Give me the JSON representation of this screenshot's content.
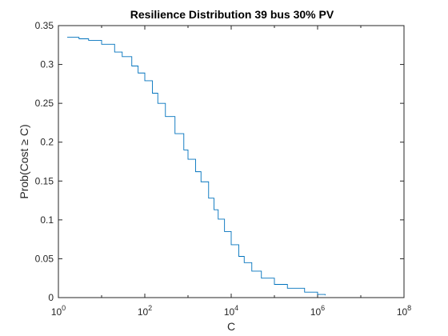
{
  "chart_data": {
    "type": "line",
    "title": "Resilience Distribution 39 bus 30% PV",
    "xlabel": "C",
    "ylabel": "Prob(Cost ≥ C)",
    "xscale": "log",
    "xlim": [
      1,
      100000000
    ],
    "ylim": [
      0,
      0.35
    ],
    "grid": false,
    "legend": "none",
    "x_ticks": [
      {
        "value": 1,
        "base": "10",
        "exp": "0"
      },
      {
        "value": 100,
        "base": "10",
        "exp": "2"
      },
      {
        "value": 10000,
        "base": "10",
        "exp": "4"
      },
      {
        "value": 1000000,
        "base": "10",
        "exp": "6"
      },
      {
        "value": 100000000,
        "base": "10",
        "exp": "8"
      }
    ],
    "y_ticks": [
      "0",
      "0.05",
      "0.1",
      "0.15",
      "0.2",
      "0.25",
      "0.3",
      "0.35"
    ],
    "series": [
      {
        "color": "#0072BD",
        "x": [
          1.6,
          3,
          5,
          10,
          20,
          30,
          50,
          70,
          100,
          150,
          200,
          300,
          500,
          800,
          1000,
          1500,
          2000,
          3000,
          4000,
          5000,
          7000,
          10000,
          15000,
          20000,
          30000,
          50000,
          100000,
          200000,
          500000,
          1000000,
          1500000
        ],
        "y": [
          0.335,
          0.333,
          0.331,
          0.326,
          0.316,
          0.31,
          0.298,
          0.289,
          0.279,
          0.263,
          0.25,
          0.233,
          0.211,
          0.19,
          0.178,
          0.162,
          0.149,
          0.128,
          0.113,
          0.101,
          0.085,
          0.068,
          0.053,
          0.045,
          0.034,
          0.025,
          0.017,
          0.012,
          0.007,
          0.004,
          0.003
        ]
      }
    ]
  }
}
